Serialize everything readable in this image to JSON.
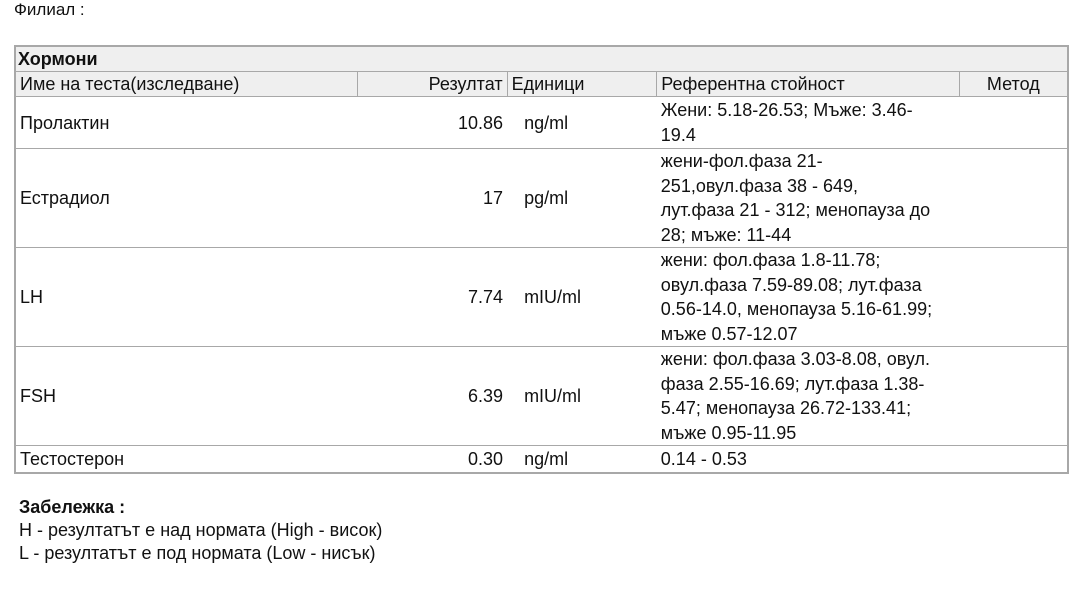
{
  "branch_label": "Филиал :",
  "section": "Хормони",
  "columns": [
    "Име на теста(изследване)",
    "Резултат",
    "Единици",
    "Референтна стойност",
    "Метод"
  ],
  "rows": [
    {
      "name": "Пролактин",
      "result": "10.86",
      "unit": "ng/ml",
      "ref": " Жени: 5.18-26.53; Мъже: 3.46-\n19.4",
      "method": ""
    },
    {
      "name": "Естрадиол",
      "result": "17",
      "unit": "pg/ml",
      "ref": " жени-фол.фаза 21-\n251,овул.фаза 38 - 649,\nлут.фаза 21 - 312; менопауза до\n28; мъже: 11-44",
      "method": ""
    },
    {
      "name": "LH",
      "result": "7.74",
      "unit": "mIU/ml",
      "ref": " жени: фол.фаза 1.8-11.78;\nовул.фаза 7.59-89.08; лут.фаза\n0.56-14.0, менопауза 5.16-61.99;\nмъже 0.57-12.07",
      "method": ""
    },
    {
      "name": "FSH",
      "result": "6.39",
      "unit": "mIU/ml",
      "ref": " жени: фол.фаза 3.03-8.08, овул.\nфаза 2.55-16.69; лут.фаза 1.38-\n5.47; менопауза 26.72-133.41;\nмъже 0.95-11.95",
      "method": ""
    },
    {
      "name": "Тестостерон",
      "result": "0.30",
      "unit": "ng/ml",
      "ref": " 0.14 - 0.53",
      "method": ""
    }
  ],
  "note": {
    "title": "Забележка :",
    "lines": [
      "H - резултатът е над нормата (High - висок)",
      "L - резултатът е под нормата (Low - нисък)"
    ]
  }
}
